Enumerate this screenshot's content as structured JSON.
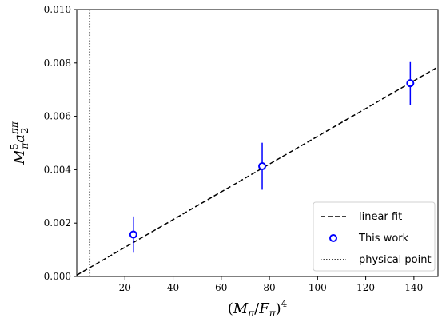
{
  "chart_data": {
    "type": "scatter",
    "title": "",
    "xlabel": "(M_π/F_π)⁴",
    "ylabel": "M_π⁵ a₂^ππ",
    "xlim": [
      0,
      150
    ],
    "ylim": [
      0.0,
      0.01
    ],
    "grid": false,
    "legend_placement": "lower-right",
    "x_ticks": [
      20,
      40,
      60,
      80,
      100,
      120,
      140
    ],
    "x_tick_labels": [
      "20",
      "40",
      "60",
      "80",
      "100",
      "120",
      "140"
    ],
    "y_ticks": [
      0.0,
      0.002,
      0.004,
      0.006,
      0.008,
      0.01
    ],
    "y_tick_labels": [
      "0.000",
      "0.002",
      "0.004",
      "0.006",
      "0.008",
      "0.010"
    ],
    "series": [
      {
        "name": "linear fit",
        "kind": "line",
        "style": "dashed",
        "color": "#000000",
        "x": [
          0,
          150
        ],
        "y": [
          5e-05,
          0.00785
        ]
      },
      {
        "name": "This work",
        "kind": "errorbar",
        "color": "#0000ff",
        "x": [
          23.5,
          77.0,
          138.5
        ],
        "y": [
          0.00157,
          0.00413,
          0.00724
        ],
        "yerr": [
          0.00068,
          0.00088,
          0.00082
        ]
      },
      {
        "name": "physical point",
        "kind": "vline",
        "style": "dotted",
        "color": "#000000",
        "x": 5.4
      }
    ]
  }
}
